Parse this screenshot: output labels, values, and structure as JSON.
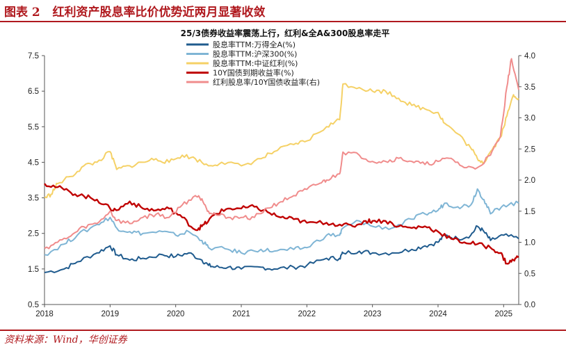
{
  "figure": {
    "label": "图表 2",
    "title": "红利资产股息率比价优势近两月显著收敛",
    "source": "资料来源：Wind，华创证券"
  },
  "chart_data": {
    "type": "line",
    "title": "25/3债券收益率震荡上行，红利&全A&300股息率走平",
    "x_ticks": [
      "2018",
      "2019",
      "2020",
      "2021",
      "2022",
      "2023",
      "2024",
      "2025"
    ],
    "x_range": [
      2018.0,
      2025.23
    ],
    "y_left": {
      "range": [
        0.5,
        7.5
      ],
      "ticks": [
        "0.5",
        "1.5",
        "2.5",
        "3.5",
        "4.5",
        "5.5",
        "6.5",
        "7.5"
      ]
    },
    "y_right": {
      "range": [
        0.0,
        4.0
      ],
      "ticks": [
        "0.0",
        "0.5",
        "1.0",
        "1.5",
        "2.0",
        "2.5",
        "3.0",
        "3.5",
        "4.0"
      ]
    },
    "series": [
      {
        "name": "股息率TTM:万得全A(%)",
        "color": "#1f5b8e",
        "axis": "left",
        "points": [
          [
            2018.0,
            1.4
          ],
          [
            2018.3,
            1.5
          ],
          [
            2018.5,
            1.7
          ],
          [
            2018.8,
            1.95
          ],
          [
            2019.0,
            2.15
          ],
          [
            2019.1,
            1.9
          ],
          [
            2019.3,
            1.75
          ],
          [
            2019.5,
            1.8
          ],
          [
            2019.8,
            1.9
          ],
          [
            2020.0,
            1.85
          ],
          [
            2020.2,
            1.95
          ],
          [
            2020.4,
            1.75
          ],
          [
            2020.5,
            1.6
          ],
          [
            2020.6,
            1.55
          ],
          [
            2020.8,
            1.55
          ],
          [
            2021.0,
            1.5
          ],
          [
            2021.3,
            1.55
          ],
          [
            2021.5,
            1.5
          ],
          [
            2021.8,
            1.55
          ],
          [
            2022.0,
            1.6
          ],
          [
            2022.3,
            1.8
          ],
          [
            2022.5,
            1.8
          ],
          [
            2022.55,
            1.95
          ],
          [
            2022.8,
            2.0
          ],
          [
            2023.0,
            1.95
          ],
          [
            2023.3,
            1.95
          ],
          [
            2023.6,
            2.05
          ],
          [
            2023.8,
            2.15
          ],
          [
            2024.0,
            2.25
          ],
          [
            2024.1,
            2.45
          ],
          [
            2024.3,
            2.35
          ],
          [
            2024.5,
            2.45
          ],
          [
            2024.6,
            2.7
          ],
          [
            2024.7,
            2.55
          ],
          [
            2024.8,
            2.3
          ],
          [
            2025.0,
            2.45
          ],
          [
            2025.23,
            2.35
          ]
        ]
      },
      {
        "name": "股息率TTM:沪深300(%)",
        "color": "#7fb5d5",
        "axis": "left",
        "points": [
          [
            2018.0,
            1.9
          ],
          [
            2018.3,
            2.2
          ],
          [
            2018.5,
            2.45
          ],
          [
            2018.8,
            2.75
          ],
          [
            2019.0,
            2.95
          ],
          [
            2019.1,
            2.65
          ],
          [
            2019.3,
            2.55
          ],
          [
            2019.5,
            2.5
          ],
          [
            2019.8,
            2.55
          ],
          [
            2020.0,
            2.45
          ],
          [
            2020.2,
            2.55
          ],
          [
            2020.4,
            2.3
          ],
          [
            2020.5,
            2.1
          ],
          [
            2020.8,
            2.05
          ],
          [
            2021.0,
            1.95
          ],
          [
            2021.3,
            2.05
          ],
          [
            2021.5,
            2.0
          ],
          [
            2021.8,
            2.05
          ],
          [
            2022.0,
            2.1
          ],
          [
            2022.3,
            2.45
          ],
          [
            2022.5,
            2.45
          ],
          [
            2022.55,
            2.65
          ],
          [
            2022.8,
            2.85
          ],
          [
            2023.0,
            2.7
          ],
          [
            2023.3,
            2.65
          ],
          [
            2023.6,
            2.9
          ],
          [
            2023.8,
            3.05
          ],
          [
            2024.0,
            3.15
          ],
          [
            2024.1,
            3.35
          ],
          [
            2024.3,
            3.25
          ],
          [
            2024.5,
            3.3
          ],
          [
            2024.6,
            3.75
          ],
          [
            2024.7,
            3.45
          ],
          [
            2024.8,
            3.05
          ],
          [
            2025.0,
            3.3
          ],
          [
            2025.23,
            3.35
          ]
        ]
      },
      {
        "name": "股息率TTM:中证红利(%)",
        "color": "#f5d166",
        "axis": "left",
        "points": [
          [
            2018.0,
            3.5
          ],
          [
            2018.1,
            3.6
          ],
          [
            2018.2,
            3.9
          ],
          [
            2018.4,
            4.1
          ],
          [
            2018.6,
            4.4
          ],
          [
            2018.8,
            4.5
          ],
          [
            2019.0,
            4.8
          ],
          [
            2019.1,
            4.3
          ],
          [
            2019.3,
            4.4
          ],
          [
            2019.5,
            4.5
          ],
          [
            2019.7,
            4.6
          ],
          [
            2019.9,
            4.5
          ],
          [
            2020.1,
            4.7
          ],
          [
            2020.3,
            4.6
          ],
          [
            2020.5,
            4.4
          ],
          [
            2020.7,
            4.5
          ],
          [
            2021.0,
            4.4
          ],
          [
            2021.3,
            4.6
          ],
          [
            2021.5,
            4.8
          ],
          [
            2021.8,
            5.0
          ],
          [
            2022.0,
            5.1
          ],
          [
            2022.3,
            5.5
          ],
          [
            2022.5,
            5.7
          ],
          [
            2022.55,
            6.7
          ],
          [
            2022.8,
            6.6
          ],
          [
            2023.0,
            6.5
          ],
          [
            2023.2,
            6.5
          ],
          [
            2023.4,
            6.3
          ],
          [
            2023.6,
            6.1
          ],
          [
            2023.8,
            6.0
          ],
          [
            2024.0,
            5.9
          ],
          [
            2024.1,
            5.6
          ],
          [
            2024.3,
            5.3
          ],
          [
            2024.5,
            4.9
          ],
          [
            2024.6,
            4.6
          ],
          [
            2024.7,
            4.5
          ],
          [
            2024.8,
            4.8
          ],
          [
            2024.95,
            5.2
          ],
          [
            2025.05,
            5.8
          ],
          [
            2025.15,
            6.4
          ],
          [
            2025.23,
            6.3
          ]
        ]
      },
      {
        "name": "10Y国债到期收益率(%)",
        "color": "#c00000",
        "axis": "left",
        "points": [
          [
            2018.0,
            3.9
          ],
          [
            2018.2,
            3.8
          ],
          [
            2018.4,
            3.65
          ],
          [
            2018.6,
            3.55
          ],
          [
            2018.8,
            3.45
          ],
          [
            2019.0,
            3.2
          ],
          [
            2019.1,
            3.15
          ],
          [
            2019.3,
            3.4
          ],
          [
            2019.5,
            3.2
          ],
          [
            2019.7,
            3.15
          ],
          [
            2019.9,
            3.2
          ],
          [
            2020.1,
            2.95
          ],
          [
            2020.3,
            2.6
          ],
          [
            2020.4,
            2.7
          ],
          [
            2020.5,
            2.85
          ],
          [
            2020.6,
            3.05
          ],
          [
            2020.8,
            3.2
          ],
          [
            2021.0,
            3.2
          ],
          [
            2021.2,
            3.25
          ],
          [
            2021.4,
            3.1
          ],
          [
            2021.6,
            2.95
          ],
          [
            2021.8,
            2.9
          ],
          [
            2022.0,
            2.8
          ],
          [
            2022.3,
            2.8
          ],
          [
            2022.5,
            2.75
          ],
          [
            2022.7,
            2.7
          ],
          [
            2022.9,
            2.85
          ],
          [
            2023.0,
            2.85
          ],
          [
            2023.2,
            2.85
          ],
          [
            2023.4,
            2.7
          ],
          [
            2023.6,
            2.65
          ],
          [
            2023.8,
            2.7
          ],
          [
            2024.0,
            2.55
          ],
          [
            2024.2,
            2.35
          ],
          [
            2024.4,
            2.25
          ],
          [
            2024.6,
            2.2
          ],
          [
            2024.8,
            2.1
          ],
          [
            2024.95,
            1.95
          ],
          [
            2025.05,
            1.65
          ],
          [
            2025.15,
            1.75
          ],
          [
            2025.23,
            1.85
          ]
        ]
      },
      {
        "name": "红利股息率/10Y国债收益率(右)",
        "color": "#f08c8c",
        "axis": "right",
        "points": [
          [
            2018.0,
            0.9
          ],
          [
            2018.2,
            1.0
          ],
          [
            2018.4,
            1.1
          ],
          [
            2018.6,
            1.25
          ],
          [
            2018.8,
            1.3
          ],
          [
            2019.0,
            1.5
          ],
          [
            2019.1,
            1.35
          ],
          [
            2019.3,
            1.3
          ],
          [
            2019.5,
            1.4
          ],
          [
            2019.7,
            1.45
          ],
          [
            2019.9,
            1.4
          ],
          [
            2020.1,
            1.6
          ],
          [
            2020.3,
            1.75
          ],
          [
            2020.4,
            1.7
          ],
          [
            2020.5,
            1.5
          ],
          [
            2020.6,
            1.45
          ],
          [
            2020.8,
            1.4
          ],
          [
            2021.0,
            1.4
          ],
          [
            2021.2,
            1.4
          ],
          [
            2021.4,
            1.55
          ],
          [
            2021.6,
            1.65
          ],
          [
            2021.8,
            1.75
          ],
          [
            2022.0,
            1.85
          ],
          [
            2022.2,
            1.95
          ],
          [
            2022.3,
            2.0
          ],
          [
            2022.5,
            2.1
          ],
          [
            2022.55,
            2.45
          ],
          [
            2022.8,
            2.4
          ],
          [
            2023.0,
            2.3
          ],
          [
            2023.2,
            2.3
          ],
          [
            2023.4,
            2.35
          ],
          [
            2023.6,
            2.3
          ],
          [
            2023.8,
            2.25
          ],
          [
            2024.0,
            2.3
          ],
          [
            2024.2,
            2.35
          ],
          [
            2024.4,
            2.2
          ],
          [
            2024.6,
            2.2
          ],
          [
            2024.8,
            2.4
          ],
          [
            2024.95,
            2.7
          ],
          [
            2025.05,
            3.5
          ],
          [
            2025.12,
            3.95
          ],
          [
            2025.23,
            3.45
          ]
        ]
      }
    ]
  }
}
